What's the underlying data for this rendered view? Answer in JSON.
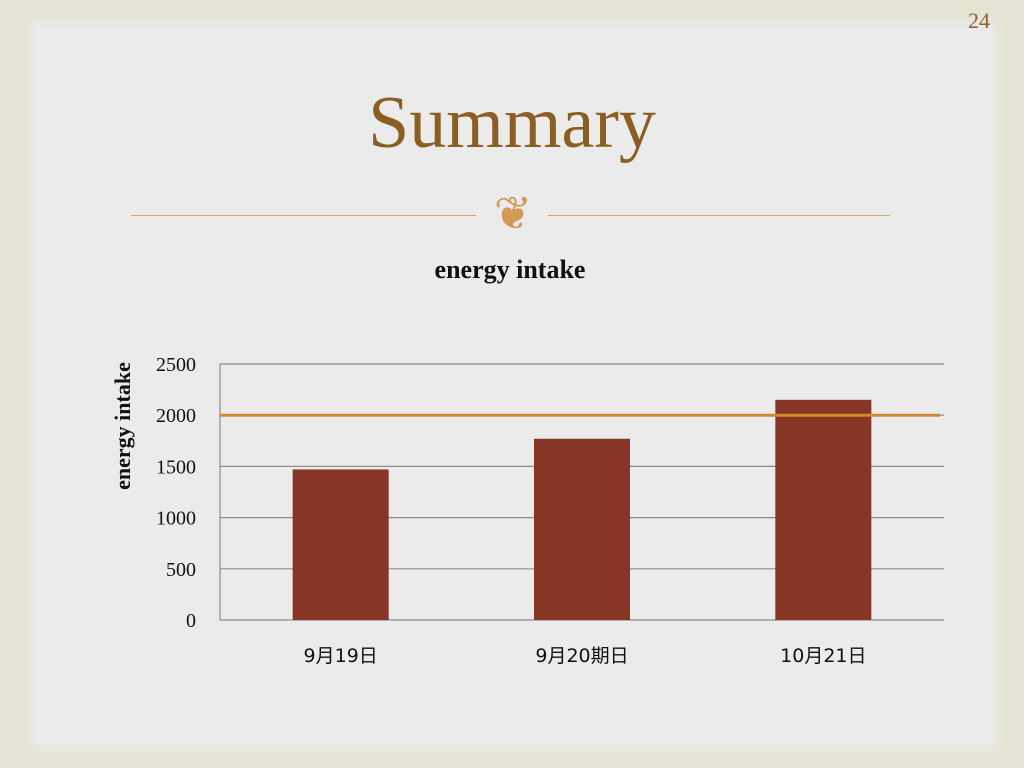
{
  "slide": {
    "page_number": "24",
    "title": "Summary",
    "ornament": "❦"
  },
  "colors": {
    "background": "#e5e3d3",
    "panel": "#ebebeb",
    "title": "#8b5e23",
    "bar": "#873525",
    "reference_line": "#d2882d",
    "gridline": "#8c8c8c"
  },
  "chart_data": {
    "type": "bar",
    "title": "energy intake",
    "xlabel": "",
    "ylabel": "energy intake",
    "categories": [
      "9月19日",
      "9月20日",
      "10月21日"
    ],
    "category_labels_printed": [
      "9月19日",
      "9月20期日",
      "10月21日"
    ],
    "values": [
      1470,
      1770,
      2150
    ],
    "reference_line": 2000,
    "ylim": [
      0,
      2500
    ],
    "yticks": [
      0,
      500,
      1000,
      1500,
      2000,
      2500
    ],
    "grid": true,
    "legend": "none"
  }
}
